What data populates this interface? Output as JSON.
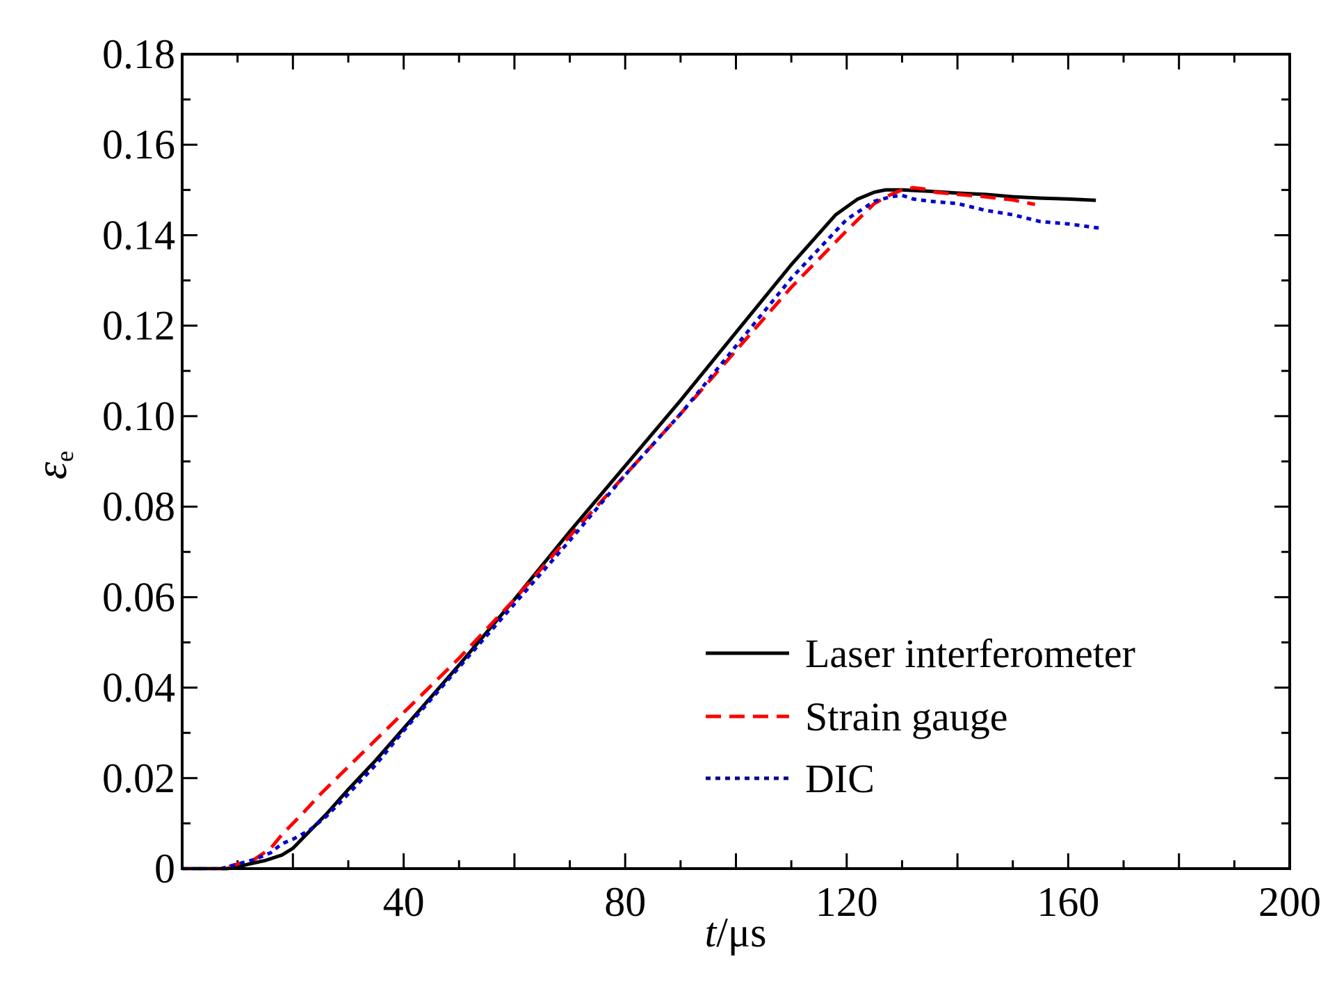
{
  "chart_data": {
    "type": "line",
    "title": "",
    "xlabel": {
      "italic": "t",
      "unit": "/μs"
    },
    "ylabel": {
      "symbol": "ε",
      "subscript": "e"
    },
    "xlim": [
      0,
      200
    ],
    "ylim": [
      0,
      0.18
    ],
    "x_ticks": [
      {
        "value": 40,
        "label": "40"
      },
      {
        "value": 80,
        "label": "80"
      },
      {
        "value": 120,
        "label": "120"
      },
      {
        "value": 160,
        "label": "160"
      },
      {
        "value": 200,
        "label": "200"
      }
    ],
    "y_ticks": [
      {
        "value": 0,
        "label": "0"
      },
      {
        "value": 0.02,
        "label": "0.02"
      },
      {
        "value": 0.04,
        "label": "0.04"
      },
      {
        "value": 0.06,
        "label": "0.06"
      },
      {
        "value": 0.08,
        "label": "0.08"
      },
      {
        "value": 0.1,
        "label": "0.10"
      },
      {
        "value": 0.12,
        "label": "0.12"
      },
      {
        "value": 0.14,
        "label": "0.14"
      },
      {
        "value": 0.16,
        "label": "0.16"
      },
      {
        "value": 0.18,
        "label": "0.18"
      }
    ],
    "x_minor_step": 10,
    "y_minor_step": 0.01,
    "grid": false,
    "legend_position": "bottom-right",
    "series": [
      {
        "name": "Laser interferometer",
        "color": "#000000",
        "style": "solid",
        "x": [
          0,
          8,
          10,
          12,
          15,
          18,
          20,
          22,
          24,
          26,
          30,
          35,
          40,
          50,
          60,
          70,
          80,
          90,
          100,
          110,
          118,
          122,
          125,
          127,
          130,
          135,
          140,
          145,
          150,
          155,
          160,
          165
        ],
        "y": [
          0,
          0,
          0.0003,
          0.001,
          0.0018,
          0.003,
          0.0045,
          0.007,
          0.0095,
          0.012,
          0.0175,
          0.024,
          0.031,
          0.045,
          0.0595,
          0.0745,
          0.089,
          0.1035,
          0.1185,
          0.1335,
          0.1445,
          0.148,
          0.1495,
          0.15,
          0.15,
          0.1497,
          0.1493,
          0.149,
          0.1485,
          0.1482,
          0.148,
          0.1477
        ]
      },
      {
        "name": "Strain gauge",
        "color": "#ff0000",
        "style": "dashed",
        "x": [
          0,
          7,
          10,
          13,
          16,
          18,
          20,
          22,
          25,
          30,
          35,
          40,
          45,
          50,
          60,
          70,
          80,
          90,
          100,
          110,
          120,
          125,
          128,
          130,
          132,
          134,
          136,
          140,
          145,
          150,
          154
        ],
        "y": [
          0,
          0,
          0.001,
          0.002,
          0.0045,
          0.0075,
          0.01,
          0.0125,
          0.0165,
          0.0225,
          0.0285,
          0.0345,
          0.0405,
          0.0465,
          0.0595,
          0.0735,
          0.087,
          0.1005,
          0.1145,
          0.1285,
          0.141,
          0.147,
          0.149,
          0.15,
          0.1505,
          0.1502,
          0.1495,
          0.149,
          0.1485,
          0.1478,
          0.1468
        ]
      },
      {
        "name": "DIC",
        "color": "#0000cc",
        "style": "dotted",
        "x": [
          0,
          7,
          10,
          13,
          16,
          18,
          20,
          23,
          26,
          30,
          35,
          40,
          50,
          60,
          70,
          80,
          90,
          100,
          110,
          120,
          125,
          128,
          130,
          132,
          135,
          140,
          145,
          150,
          155,
          160,
          166
        ],
        "y": [
          0,
          0,
          0.001,
          0.002,
          0.0035,
          0.0055,
          0.0065,
          0.0085,
          0.0115,
          0.0165,
          0.023,
          0.0305,
          0.0445,
          0.0585,
          0.0725,
          0.087,
          0.1005,
          0.1155,
          0.1305,
          0.1435,
          0.1475,
          0.1485,
          0.1488,
          0.148,
          0.1475,
          0.147,
          0.1455,
          0.1445,
          0.143,
          0.1425,
          0.1415
        ]
      }
    ]
  }
}
